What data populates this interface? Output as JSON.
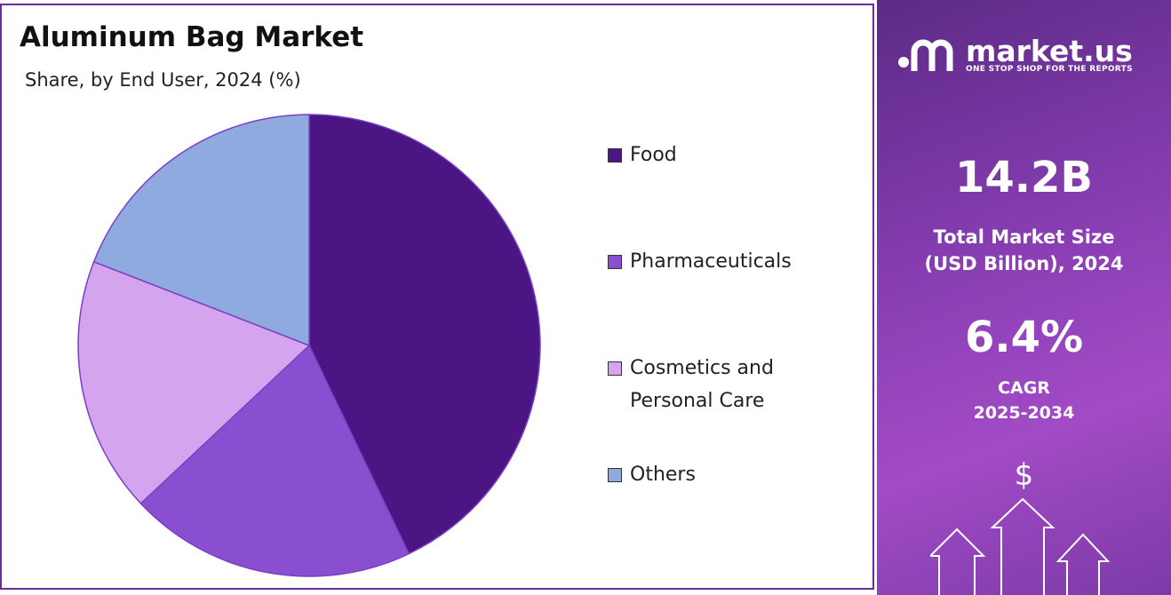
{
  "chart_data": {
    "type": "pie",
    "title": "Aluminum Bag Market",
    "subtitle": "Share, by End User, 2024 (%)",
    "categories": [
      "Food",
      "Pharmaceuticals",
      "Cosmetics and Personal Care",
      "Others"
    ],
    "values": [
      42.9,
      20.1,
      17.9,
      19.1
    ],
    "colors": [
      "#4b1683",
      "#8a4fd0",
      "#d4a5ee",
      "#8faadf"
    ]
  },
  "side_panel": {
    "brand": "market.us",
    "tagline": "ONE STOP SHOP FOR THE REPORTS",
    "market_size": "14.2B",
    "market_size_label": [
      "Total Market Size",
      "(USD Billion), 2024"
    ],
    "cagr": "6.4%",
    "cagr_label": [
      "CAGR",
      "2025-2034"
    ],
    "icon": "$"
  }
}
